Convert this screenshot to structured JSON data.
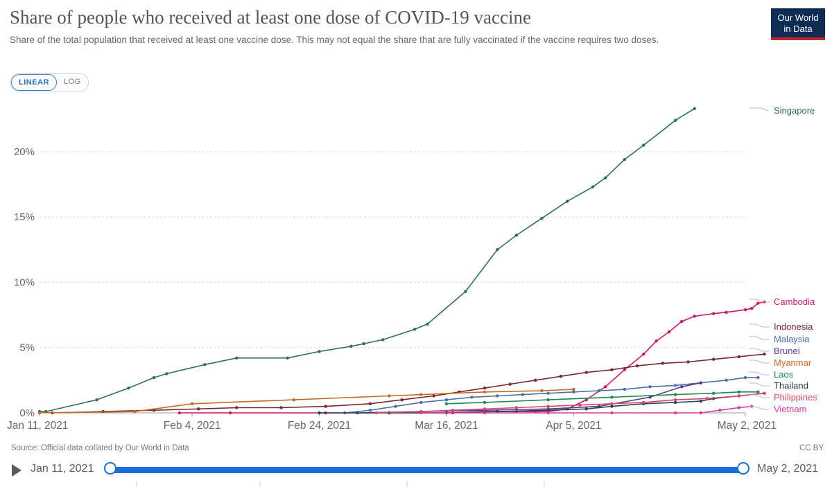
{
  "header": {
    "title": "Share of people who received at least one dose of COVID-19 vaccine",
    "subtitle": "Share of the total population that received at least one vaccine dose. This may not equal the share that are fully vaccinated if the vaccine requires two doses.",
    "logo_line1": "Our World",
    "logo_line2": "in Data"
  },
  "controls": {
    "linear_label": "LINEAR",
    "log_label": "LOG"
  },
  "footer": {
    "source": "Source: Official data collated by Our World in Data",
    "license": "CC BY"
  },
  "timeline": {
    "start_label": "Jan 11, 2021",
    "end_label": "May 2, 2021"
  },
  "colors": {
    "Singapore": "#2e6e57",
    "Cambodia": "#c9156b",
    "Indonesia": "#7a2531",
    "Malaysia": "#4c6ea6",
    "Brunei": "#5a3d8a",
    "Myanmar": "#c46a24",
    "Laos": "#1a8a4a",
    "Thailand": "#2c3e55",
    "Philippines": "#d2486b",
    "Vietnam": "#d63aa1"
  },
  "chart_data": {
    "type": "line",
    "title": "Share of people who received at least one dose of COVID-19 vaccine",
    "ylabel": "",
    "xlabel": "",
    "ylim": [
      0,
      23.5
    ],
    "x_range": [
      "2021-01-11",
      "2021-05-02"
    ],
    "y_ticks": [
      "0%",
      "5%",
      "10%",
      "15%",
      "20%"
    ],
    "y_tick_values": [
      0,
      5,
      10,
      15,
      20
    ],
    "x_ticks": [
      {
        "day": 0,
        "label": "Jan 11, 2021"
      },
      {
        "day": 24,
        "label": "Feb 4, 2021"
      },
      {
        "day": 44,
        "label": "Feb 24, 2021"
      },
      {
        "day": 64,
        "label": "Mar 16, 2021"
      },
      {
        "day": 84,
        "label": "Apr 5, 2021"
      },
      {
        "day": 111,
        "label": "May 2, 2021"
      }
    ],
    "series": [
      {
        "name": "Singapore",
        "label": "Singapore",
        "points": [
          [
            0,
            0.1
          ],
          [
            1,
            0.1
          ],
          [
            9,
            1.0
          ],
          [
            14,
            1.9
          ],
          [
            18,
            2.7
          ],
          [
            20,
            3.0
          ],
          [
            26,
            3.7
          ],
          [
            31,
            4.2
          ],
          [
            39,
            4.2
          ],
          [
            44,
            4.7
          ],
          [
            49,
            5.1
          ],
          [
            51,
            5.3
          ],
          [
            54,
            5.6
          ],
          [
            59,
            6.4
          ],
          [
            61,
            6.8
          ],
          [
            67,
            9.3
          ],
          [
            72,
            12.5
          ],
          [
            75,
            13.6
          ],
          [
            79,
            14.9
          ],
          [
            83,
            16.2
          ],
          [
            87,
            17.3
          ],
          [
            89,
            18.0
          ],
          [
            92,
            19.4
          ],
          [
            95,
            20.5
          ],
          [
            100,
            22.4
          ],
          [
            103,
            23.3
          ]
        ]
      },
      {
        "name": "Cambodia",
        "label": "Cambodia",
        "points": [
          [
            22,
            0.0
          ],
          [
            30,
            0.0
          ],
          [
            45,
            0.0
          ],
          [
            55,
            0.0
          ],
          [
            65,
            0.0
          ],
          [
            70,
            0.1
          ],
          [
            75,
            0.1
          ],
          [
            78,
            0.1
          ],
          [
            80,
            0.1
          ],
          [
            83,
            0.3
          ],
          [
            86,
            1.0
          ],
          [
            89,
            2.0
          ],
          [
            92,
            3.3
          ],
          [
            95,
            4.5
          ],
          [
            97,
            5.5
          ],
          [
            99,
            6.2
          ],
          [
            101,
            7.0
          ],
          [
            103,
            7.4
          ],
          [
            106,
            7.6
          ],
          [
            108,
            7.7
          ],
          [
            111,
            7.9
          ],
          [
            112,
            8.0
          ],
          [
            113,
            8.4
          ],
          [
            114,
            8.5
          ]
        ]
      },
      {
        "name": "Indonesia",
        "label": "Indonesia",
        "points": [
          [
            2,
            0.0
          ],
          [
            10,
            0.1
          ],
          [
            18,
            0.2
          ],
          [
            25,
            0.3
          ],
          [
            31,
            0.4
          ],
          [
            38,
            0.4
          ],
          [
            45,
            0.5
          ],
          [
            52,
            0.7
          ],
          [
            57,
            1.0
          ],
          [
            62,
            1.3
          ],
          [
            66,
            1.6
          ],
          [
            70,
            1.9
          ],
          [
            74,
            2.2
          ],
          [
            78,
            2.5
          ],
          [
            82,
            2.8
          ],
          [
            86,
            3.1
          ],
          [
            90,
            3.3
          ],
          [
            94,
            3.6
          ],
          [
            98,
            3.8
          ],
          [
            102,
            3.9
          ],
          [
            106,
            4.1
          ],
          [
            110,
            4.3
          ],
          [
            114,
            4.5
          ]
        ]
      },
      {
        "name": "Malaysia",
        "label": "Malaysia",
        "points": [
          [
            48,
            0.0
          ],
          [
            52,
            0.2
          ],
          [
            56,
            0.5
          ],
          [
            60,
            0.8
          ],
          [
            64,
            1.0
          ],
          [
            68,
            1.2
          ],
          [
            72,
            1.3
          ],
          [
            76,
            1.4
          ],
          [
            80,
            1.5
          ],
          [
            84,
            1.6
          ],
          [
            88,
            1.7
          ],
          [
            92,
            1.8
          ],
          [
            96,
            2.0
          ],
          [
            100,
            2.1
          ],
          [
            104,
            2.3
          ],
          [
            108,
            2.5
          ],
          [
            111,
            2.7
          ],
          [
            113,
            2.7
          ]
        ]
      },
      {
        "name": "Brunei",
        "label": "Brunei",
        "points": [
          [
            50,
            0.0
          ],
          [
            60,
            0.1
          ],
          [
            70,
            0.2
          ],
          [
            80,
            0.3
          ],
          [
            88,
            0.5
          ],
          [
            96,
            1.2
          ],
          [
            101,
            2.0
          ],
          [
            104,
            2.3
          ]
        ]
      },
      {
        "name": "Myanmar",
        "label": "Myanmar",
        "points": [
          [
            0,
            0.0
          ],
          [
            15,
            0.1
          ],
          [
            24,
            0.7
          ],
          [
            40,
            1.0
          ],
          [
            55,
            1.3
          ],
          [
            60,
            1.4
          ],
          [
            70,
            1.6
          ],
          [
            79,
            1.7
          ],
          [
            84,
            1.8
          ]
        ]
      },
      {
        "name": "Laos",
        "label": "Laos",
        "points": [
          [
            64,
            0.7
          ],
          [
            70,
            0.8
          ],
          [
            80,
            1.0
          ],
          [
            90,
            1.2
          ],
          [
            100,
            1.4
          ],
          [
            106,
            1.5
          ],
          [
            110,
            1.6
          ],
          [
            113,
            1.6
          ]
        ]
      },
      {
        "name": "Thailand",
        "label": "Thailand",
        "points": [
          [
            44,
            0.0
          ],
          [
            55,
            0.0
          ],
          [
            64,
            0.0
          ],
          [
            72,
            0.1
          ],
          [
            80,
            0.2
          ],
          [
            86,
            0.3
          ],
          [
            90,
            0.5
          ],
          [
            95,
            0.7
          ],
          [
            100,
            0.8
          ],
          [
            104,
            0.9
          ],
          [
            106,
            1.1
          ],
          [
            110,
            1.3
          ],
          [
            114,
            1.5
          ]
        ]
      },
      {
        "name": "Philippines",
        "label": "Philippines",
        "points": [
          [
            53,
            0.0
          ],
          [
            60,
            0.1
          ],
          [
            65,
            0.2
          ],
          [
            70,
            0.3
          ],
          [
            75,
            0.4
          ],
          [
            80,
            0.5
          ],
          [
            85,
            0.6
          ],
          [
            90,
            0.7
          ],
          [
            95,
            0.8
          ],
          [
            100,
            1.0
          ],
          [
            105,
            1.1
          ],
          [
            110,
            1.3
          ],
          [
            114,
            1.5
          ]
        ]
      },
      {
        "name": "Vietnam",
        "label": "Vietnam",
        "points": [
          [
            60,
            0.0
          ],
          [
            70,
            0.0
          ],
          [
            80,
            0.0
          ],
          [
            90,
            0.0
          ],
          [
            100,
            0.0
          ],
          [
            104,
            0.0
          ],
          [
            107,
            0.2
          ],
          [
            110,
            0.4
          ],
          [
            112,
            0.5
          ]
        ]
      }
    ]
  }
}
